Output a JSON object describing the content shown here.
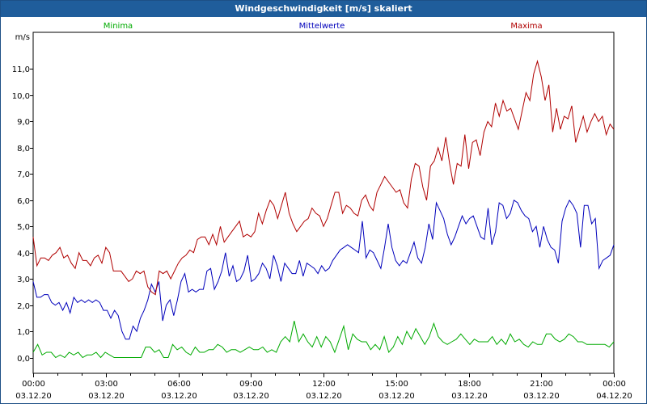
{
  "window": {
    "title": "Windgeschwindigkeit [m/s] skaliert"
  },
  "chart_data": {
    "type": "line",
    "title": "Windgeschwindigkeit [m/s] skaliert",
    "ylabel": "m/s",
    "ylim": [
      -0.6,
      12.4
    ],
    "xlim_hours": [
      0,
      24
    ],
    "yticks": [
      "0,0",
      "1,0",
      "2,0",
      "3,0",
      "4,0",
      "5,0",
      "6,0",
      "7,0",
      "8,0",
      "9,0",
      "10,0",
      "11,0"
    ],
    "ytick_values": [
      0,
      1,
      2,
      3,
      4,
      5,
      6,
      7,
      8,
      9,
      10,
      11
    ],
    "xticks": [
      {
        "time": "00:00",
        "date": "03.12.20"
      },
      {
        "time": "03:00",
        "date": "03.12.20"
      },
      {
        "time": "06:00",
        "date": "03.12.20"
      },
      {
        "time": "09:00",
        "date": "03.12.20"
      },
      {
        "time": "12:00",
        "date": "03.12.20"
      },
      {
        "time": "15:00",
        "date": "03.12.20"
      },
      {
        "time": "18:00",
        "date": "03.12.20"
      },
      {
        "time": "21:00",
        "date": "03.12.20"
      },
      {
        "time": "00:00",
        "date": "04.12.20"
      }
    ],
    "grid": true,
    "series": [
      {
        "name": "Minima",
        "color": "#00aa00",
        "values": [
          0.2,
          0.5,
          0.1,
          0.2,
          0.2,
          0.0,
          0.1,
          0.0,
          0.2,
          0.1,
          0.2,
          0.0,
          0.1,
          0.1,
          0.2,
          0.0,
          0.2,
          0.1,
          0.0,
          0.0,
          0.0,
          0.0,
          0.0,
          0.0,
          0.0,
          0.4,
          0.4,
          0.2,
          0.3,
          0.0,
          0.0,
          0.5,
          0.3,
          0.4,
          0.2,
          0.1,
          0.4,
          0.2,
          0.2,
          0.3,
          0.3,
          0.5,
          0.4,
          0.2,
          0.3,
          0.3,
          0.2,
          0.3,
          0.4,
          0.3,
          0.3,
          0.4,
          0.2,
          0.3,
          0.2,
          0.6,
          0.8,
          0.6,
          1.4,
          0.6,
          0.9,
          0.6,
          0.4,
          0.8,
          0.4,
          0.8,
          0.6,
          0.2,
          0.7,
          1.2,
          0.3,
          0.9,
          0.7,
          0.6,
          0.6,
          0.3,
          0.5,
          0.3,
          0.8,
          0.2,
          0.4,
          0.8,
          0.5,
          1.0,
          0.7,
          1.1,
          0.8,
          0.5,
          0.8,
          1.3,
          0.8,
          0.6,
          0.5,
          0.6,
          0.7,
          0.9,
          0.7,
          0.5,
          0.7,
          0.6,
          0.6,
          0.6,
          0.8,
          0.5,
          0.7,
          0.5,
          0.9,
          0.6,
          0.7,
          0.5,
          0.4,
          0.6,
          0.5,
          0.5,
          0.9,
          0.9,
          0.7,
          0.6,
          0.7,
          0.9,
          0.8,
          0.6,
          0.6,
          0.5,
          0.5,
          0.5,
          0.5,
          0.5,
          0.4,
          0.6
        ]
      },
      {
        "name": "Mittelwerte",
        "color": "#0000bb",
        "values": [
          2.9,
          2.3,
          2.3,
          2.4,
          2.4,
          2.1,
          2.0,
          2.1,
          1.8,
          2.1,
          1.7,
          2.3,
          2.1,
          2.2,
          2.1,
          2.2,
          2.1,
          2.2,
          2.1,
          1.8,
          1.8,
          1.5,
          1.8,
          1.6,
          1.0,
          0.7,
          0.7,
          1.2,
          1.0,
          1.5,
          1.8,
          2.2,
          2.8,
          2.5,
          2.9,
          1.4,
          2.0,
          2.2,
          1.6,
          2.2,
          2.9,
          3.2,
          2.5,
          2.6,
          2.5,
          2.6,
          2.6,
          3.3,
          3.4,
          2.6,
          2.9,
          3.3,
          4.0,
          3.1,
          3.5,
          2.9,
          3.0,
          3.3,
          3.9,
          2.9,
          3.0,
          3.2,
          3.6,
          3.4,
          3.0,
          3.9,
          3.5,
          2.9,
          3.6,
          3.4,
          3.2,
          3.2,
          3.7,
          3.1,
          3.6,
          3.5,
          3.4,
          3.2,
          3.5,
          3.3,
          3.4,
          3.7,
          3.9,
          4.1,
          4.2,
          4.3,
          4.2,
          4.1,
          4.0,
          5.2,
          3.8,
          4.1,
          4.0,
          3.7,
          3.4,
          4.2,
          5.1,
          4.2,
          3.7,
          3.5,
          3.7,
          3.6,
          4.0,
          4.4,
          3.8,
          3.6,
          4.2,
          5.1,
          4.5,
          5.9,
          5.6,
          5.3,
          4.7,
          4.3,
          4.6,
          5.0,
          5.4,
          5.1,
          5.3,
          5.4,
          5.0,
          4.6,
          4.5,
          5.7,
          4.3,
          4.8,
          5.9,
          5.8,
          5.3,
          5.5,
          6.0,
          5.9,
          5.6,
          5.4,
          5.3,
          4.8,
          5.0,
          4.2,
          5.0,
          4.5,
          4.2,
          4.1,
          3.6,
          5.2,
          5.7,
          6.0,
          5.8,
          5.5,
          4.2,
          5.8,
          5.8,
          5.1,
          5.3,
          3.4,
          3.7,
          3.8,
          3.9,
          4.3
        ]
      },
      {
        "name": "Maxima",
        "color": "#b00000",
        "values": [
          4.6,
          3.5,
          3.8,
          3.8,
          3.7,
          3.9,
          4.0,
          4.2,
          3.8,
          3.9,
          3.6,
          3.4,
          4.0,
          3.7,
          3.7,
          3.5,
          3.8,
          3.9,
          3.6,
          4.2,
          4.0,
          3.3,
          3.3,
          3.3,
          3.1,
          2.9,
          3.0,
          3.3,
          3.2,
          3.3,
          2.7,
          2.5,
          2.4,
          3.3,
          3.2,
          3.3,
          3.0,
          3.3,
          3.6,
          3.8,
          3.9,
          4.1,
          4.0,
          4.5,
          4.6,
          4.6,
          4.3,
          4.7,
          4.3,
          5.0,
          4.4,
          4.6,
          4.8,
          5.0,
          5.2,
          4.6,
          4.7,
          4.6,
          4.8,
          5.5,
          5.1,
          5.6,
          6.0,
          5.8,
          5.3,
          5.8,
          6.3,
          5.5,
          5.1,
          4.8,
          5.0,
          5.2,
          5.3,
          5.7,
          5.5,
          5.4,
          5.0,
          5.3,
          5.8,
          6.3,
          6.3,
          5.5,
          5.8,
          5.7,
          5.5,
          5.4,
          6.0,
          6.2,
          5.8,
          5.6,
          6.3,
          6.6,
          6.9,
          6.7,
          6.5,
          6.3,
          6.4,
          5.9,
          5.7,
          6.8,
          7.4,
          7.3,
          6.5,
          6.0,
          7.3,
          7.5,
          8.0,
          7.5,
          8.4,
          7.4,
          6.6,
          7.4,
          7.3,
          8.5,
          7.2,
          8.2,
          8.3,
          7.7,
          8.6,
          9.0,
          8.8,
          9.7,
          9.2,
          9.8,
          9.4,
          9.5,
          9.1,
          8.7,
          9.4,
          10.1,
          9.8,
          10.8,
          11.3,
          10.7,
          9.8,
          10.4,
          8.6,
          9.5,
          8.7,
          9.2,
          9.1,
          9.6,
          8.2,
          8.7,
          9.2,
          8.6,
          9.0,
          9.3,
          9.0,
          9.2,
          8.5,
          8.9,
          8.7
        ]
      }
    ]
  }
}
